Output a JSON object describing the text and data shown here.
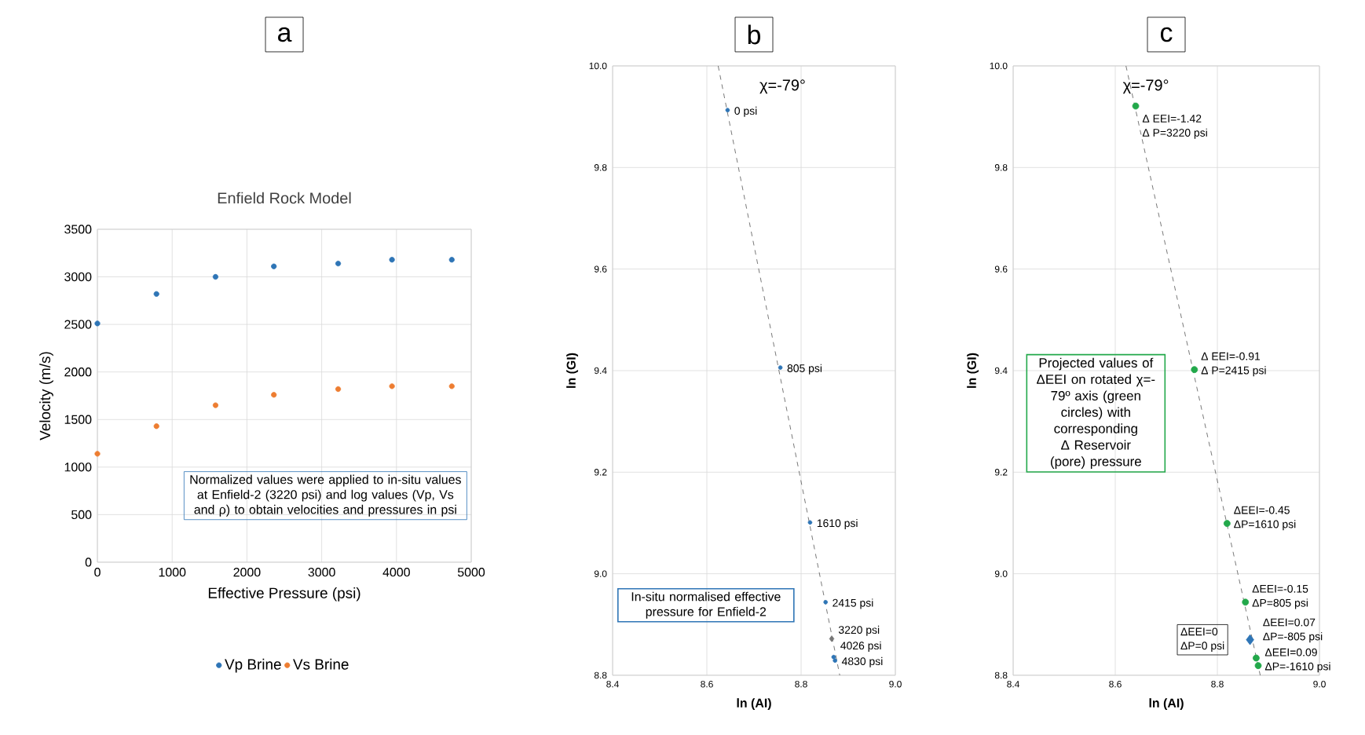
{
  "chart_data": [
    {
      "type": "scatter",
      "title": "a",
      "subtitle": "Enfield Rock Model",
      "xlabel": "Effective Pressure (psi)",
      "ylabel": "Velocity (m/s)",
      "marker": "circle",
      "grid": true,
      "legend": "bottom",
      "series": [
        {
          "name": "Vp Brine",
          "color": "#2e75b6",
          "x": [
            0,
            790,
            1580,
            2360,
            3220,
            3940,
            4740
          ],
          "values": [
            2510,
            2820,
            3000,
            3110,
            3140,
            3180,
            3180
          ]
        },
        {
          "name": "Vs Brine",
          "color": "#ed7d31",
          "x": [
            0,
            790,
            1580,
            2360,
            3220,
            3940,
            4740
          ],
          "values": [
            1140,
            1430,
            1650,
            1760,
            1820,
            1850,
            1850
          ]
        }
      ],
      "xlim": [
        0,
        5000
      ],
      "xticks": [
        0,
        1000,
        2000,
        3000,
        4000,
        5000
      ],
      "ylim": [
        0,
        3500
      ],
      "yticks": [
        0,
        500,
        1000,
        1500,
        2000,
        2500,
        3000,
        3500
      ],
      "annotations": [
        "Normalized values were applied to in-situ values at Enfield-2 (3220 psi) and log values (Vp, Vs and ρ) to obtain velocities and pressures in psi"
      ]
    },
    {
      "type": "scatter",
      "title": "b",
      "xlabel": "ln (AI)",
      "ylabel": "ln (GI)",
      "marker": "circle",
      "grid": true,
      "series": [
        {
          "type": "line",
          "color": "#555555",
          "line_style": "dashed",
          "marker": "none",
          "x": [
            8.624,
            8.882
          ],
          "values": [
            10.0,
            8.8
          ]
        },
        {
          "color": "#2e75b6",
          "x": [
            8.644,
            8.756,
            8.819,
            8.852,
            8.869,
            8.872
          ],
          "values": [
            9.913,
            9.406,
            9.101,
            8.944,
            8.836,
            8.829
          ]
        },
        {
          "color": "#777777",
          "marker": "diamond",
          "x": [
            8.865
          ],
          "values": [
            8.872
          ]
        }
      ],
      "xlim": [
        8.4,
        9.0
      ],
      "xticks": [
        {
          "value": 8.4,
          "label": "8.4"
        },
        {
          "value": 8.6,
          "label": "8.6"
        },
        {
          "value": 8.8,
          "label": "8.8"
        },
        {
          "value": 9.0,
          "label": "9.0"
        }
      ],
      "ylim": [
        8.8,
        10.0
      ],
      "yticks": [
        {
          "value": 8.8,
          "label": "8.8"
        },
        {
          "value": 9.0,
          "label": "9.0"
        },
        {
          "value": 9.2,
          "label": "9.2"
        },
        {
          "value": 9.4,
          "label": "9.4"
        },
        {
          "value": 9.6,
          "label": "9.6"
        },
        {
          "value": 9.8,
          "label": "9.8"
        },
        {
          "value": 10.0,
          "label": "10.0"
        }
      ],
      "annotations": [
        "χ=-79°",
        "In-situ normalised effective pressure for Enfield-2",
        {
          "text": "0 psi",
          "x": 8.644,
          "y": 9.913
        },
        {
          "text": "805 psi",
          "x": 8.756,
          "y": 9.406
        },
        {
          "text": "1610 psi",
          "x": 8.819,
          "y": 9.101
        },
        {
          "text": "2415 psi",
          "x": 8.852,
          "y": 8.944
        },
        {
          "text": "3220 psi",
          "x": 8.865,
          "y": 8.872
        },
        {
          "text": "4026 psi",
          "x": 8.869,
          "y": 8.836
        },
        {
          "text": "4830 psi",
          "x": 8.872,
          "y": 8.829
        }
      ]
    },
    {
      "type": "scatter",
      "title": "c",
      "xlabel": "ln (AI)",
      "ylabel": "ln (GI)",
      "marker": "circle",
      "grid": true,
      "series": [
        {
          "type": "line",
          "color": "#555555",
          "line_style": "dashed",
          "marker": "none",
          "x": [
            8.621,
            8.884
          ],
          "values": [
            10.0,
            8.8
          ]
        },
        {
          "color": "#22a84a",
          "x": [
            8.64,
            8.755,
            8.819,
            8.855,
            8.876,
            8.88
          ],
          "values": [
            9.921,
            9.402,
            9.099,
            8.944,
            8.834,
            8.819
          ]
        },
        {
          "color": "#2e75b6",
          "marker": "diamond",
          "x": [
            8.864
          ],
          "values": [
            8.87
          ]
        }
      ],
      "xlim": [
        8.4,
        9.0
      ],
      "xticks": [
        {
          "value": 8.4,
          "label": "8.4"
        },
        {
          "value": 8.6,
          "label": "8.6"
        },
        {
          "value": 8.8,
          "label": "8.8"
        },
        {
          "value": 9.0,
          "label": "9.0"
        }
      ],
      "ylim": [
        8.8,
        10.0
      ],
      "yticks": [
        {
          "value": 8.8,
          "label": "8.8"
        },
        {
          "value": 9.0,
          "label": "9.0"
        },
        {
          "value": 9.2,
          "label": "9.2"
        },
        {
          "value": 9.4,
          "label": "9.4"
        },
        {
          "value": 9.6,
          "label": "9.6"
        },
        {
          "value": 9.8,
          "label": "9.8"
        },
        {
          "value": 10.0,
          "label": "10.0"
        }
      ],
      "annotations": [
        "χ=-79°",
        "Projected values of ΔEEI on rotated χ=-79º axis (green circles) with corresponding Δ Reservoir (pore) pressure",
        {
          "text": "Δ EEI=-1.42",
          "x": 8.64,
          "y": 9.921
        },
        {
          "text": "Δ P=3220 psi",
          "x": 8.64,
          "y": 9.921
        },
        {
          "text": "Δ EEI=-0.91",
          "x": 8.755,
          "y": 9.402
        },
        {
          "text": "Δ P=2415 psi",
          "x": 8.755,
          "y": 9.402
        },
        {
          "text": "ΔEEI=-0.45",
          "x": 8.819,
          "y": 9.099
        },
        {
          "text": "ΔP=1610 psi",
          "x": 8.819,
          "y": 9.099
        },
        {
          "text": "ΔEEI=-0.15",
          "x": 8.855,
          "y": 8.944
        },
        {
          "text": "ΔP=805 psi",
          "x": 8.855,
          "y": 8.944
        },
        {
          "text": "ΔEEI=0",
          "x": 8.864,
          "y": 8.87
        },
        {
          "text": "ΔP=0 psi",
          "x": 8.864,
          "y": 8.87
        },
        {
          "text": "ΔEEI=0.07",
          "x": 8.876,
          "y": 8.834
        },
        {
          "text": "ΔP=-805 psi",
          "x": 8.876,
          "y": 8.834
        },
        {
          "text": "ΔEEI=0.09",
          "x": 8.88,
          "y": 8.819
        },
        {
          "text": "ΔP=-1610 psi",
          "x": 8.88,
          "y": 8.819
        }
      ]
    }
  ]
}
